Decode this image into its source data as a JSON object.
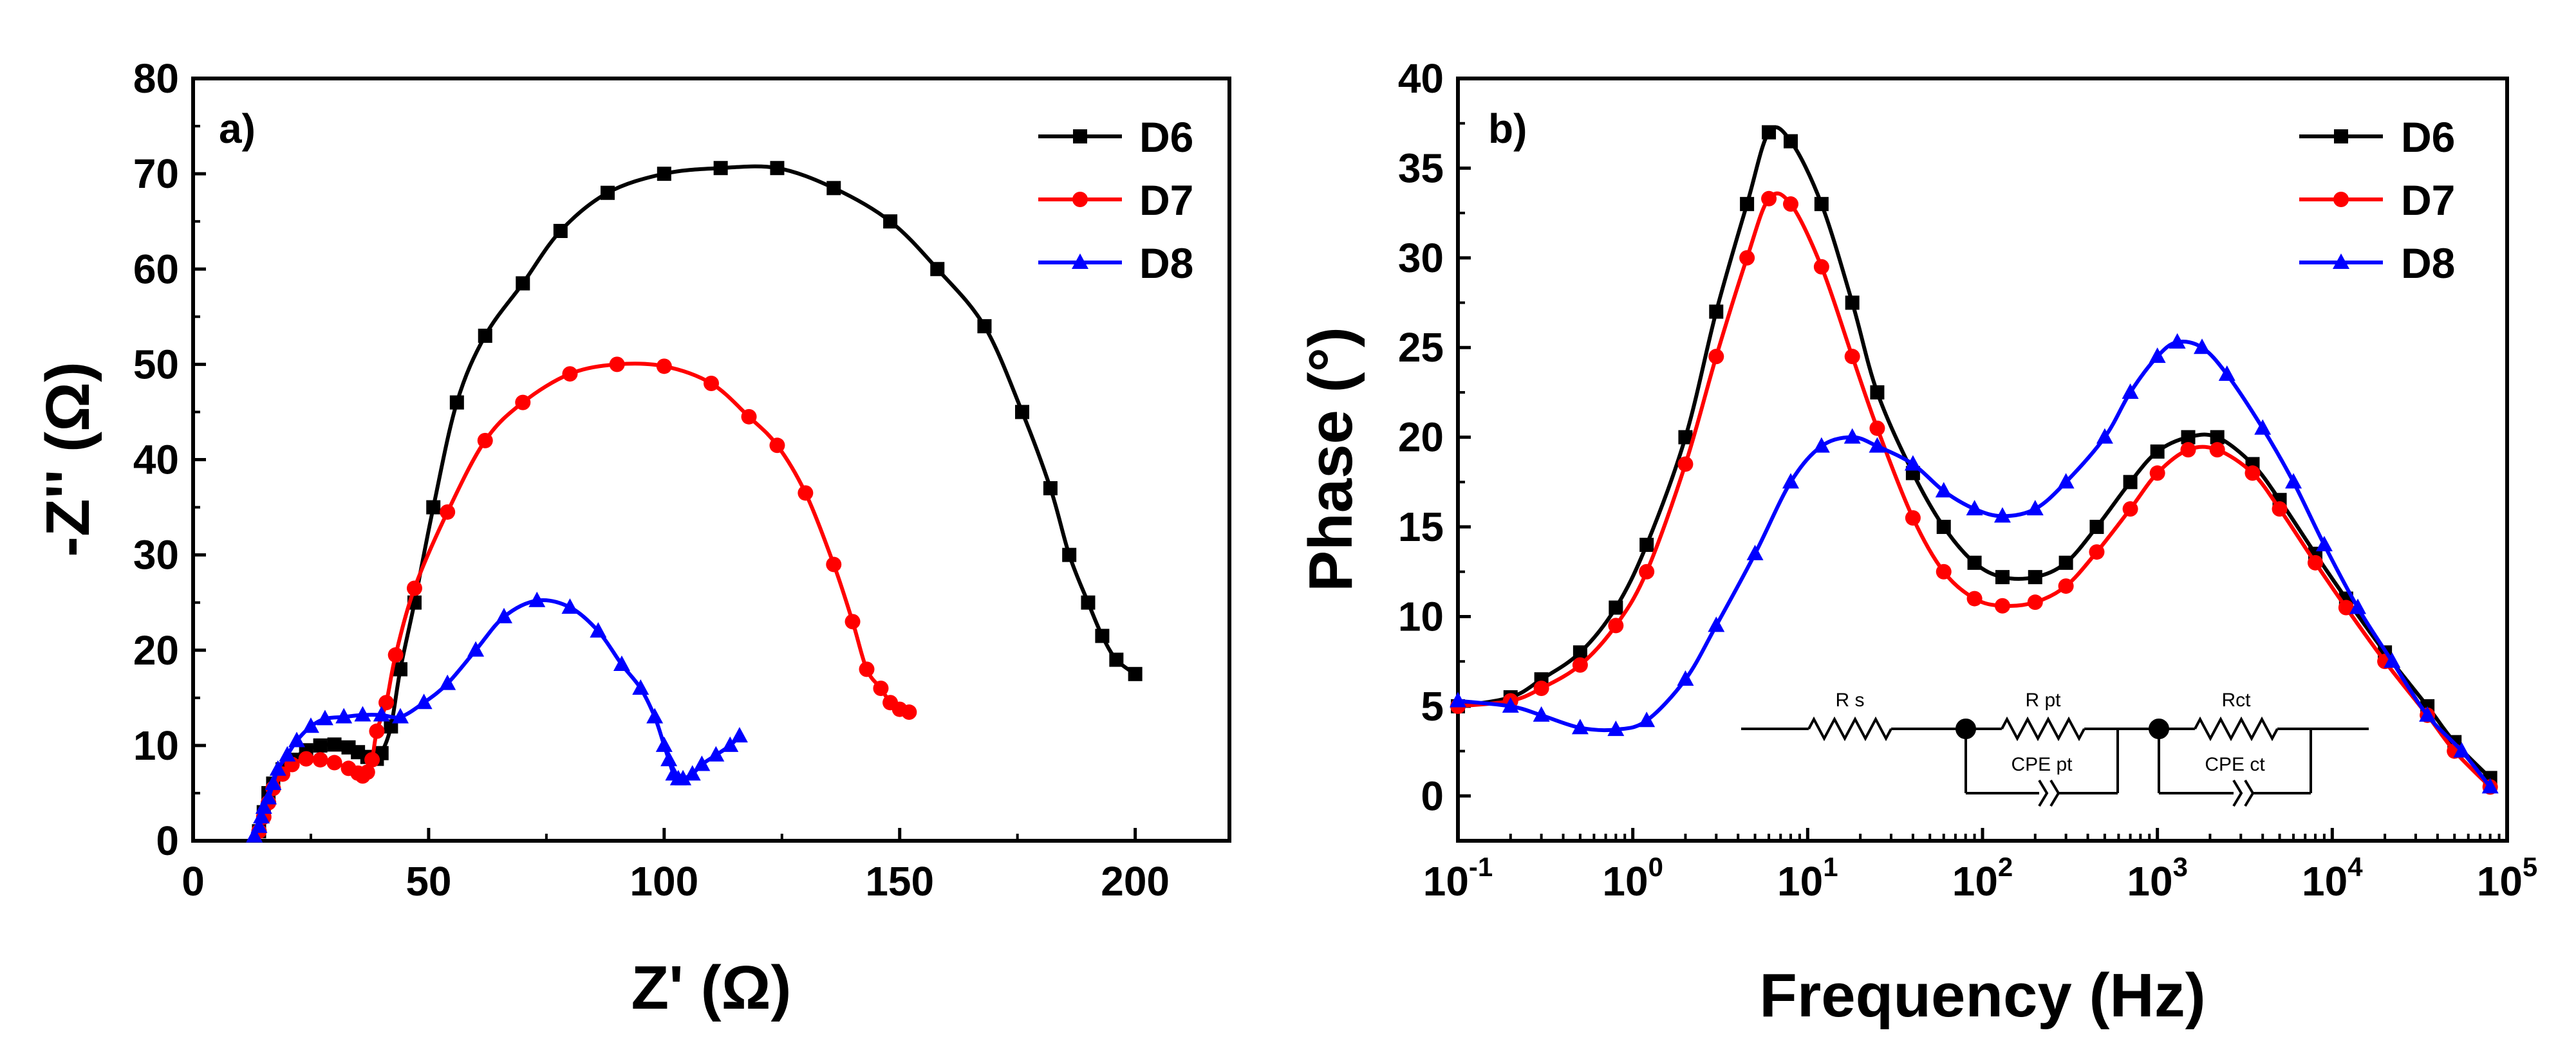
{
  "chart_data": [
    {
      "type": "scatter",
      "panel_label": "a)",
      "xlabel": "Z' (Ω)",
      "ylabel": "-Z'' (Ω)",
      "xlim": [
        0,
        220
      ],
      "ylim": [
        0,
        80
      ],
      "xticks": [
        0,
        50,
        100,
        150,
        200
      ],
      "yticks": [
        0,
        10,
        20,
        30,
        40,
        50,
        60,
        70,
        80
      ],
      "legend": "top-right",
      "series": [
        {
          "name": "D6",
          "color": "#000000",
          "marker": "square",
          "x": [
            14,
            15,
            16,
            17,
            19,
            21,
            24,
            27,
            30,
            33,
            35,
            37,
            39,
            40,
            42,
            44,
            47,
            51,
            56,
            62,
            70,
            78,
            88,
            100,
            112,
            124,
            136,
            148,
            158,
            168,
            176,
            182,
            186,
            190,
            193,
            196,
            200
          ],
          "y": [
            1,
            3,
            5,
            6,
            7.5,
            8.5,
            9.5,
            10,
            10.1,
            9.8,
            9.3,
            8.8,
            8.6,
            9.2,
            12,
            18,
            25,
            35,
            46,
            53,
            58.5,
            64,
            68,
            70,
            70.6,
            70.6,
            68.5,
            65,
            60,
            54,
            45,
            37,
            30,
            25,
            21.5,
            19,
            17.5
          ]
        },
        {
          "name": "D7",
          "color": "#ff0000",
          "marker": "circle",
          "x": [
            14,
            15,
            16,
            17,
            19,
            21,
            24,
            27,
            30,
            33,
            35,
            36,
            37,
            38,
            39,
            41,
            43,
            47,
            54,
            62,
            70,
            80,
            90,
            100,
            110,
            118,
            124,
            130,
            136,
            140,
            143,
            146,
            148,
            150,
            152
          ],
          "y": [
            1,
            2.5,
            4,
            5.5,
            7,
            8,
            8.6,
            8.5,
            8.2,
            7.6,
            7.1,
            6.8,
            7.2,
            8.5,
            11.5,
            14.5,
            19.5,
            26.5,
            34.5,
            42,
            46,
            49,
            50,
            49.8,
            48,
            44.5,
            41.5,
            36.5,
            29,
            23,
            18,
            16,
            14.5,
            13.8,
            13.5
          ]
        },
        {
          "name": "D8",
          "color": "#0000ff",
          "marker": "triangle",
          "x": [
            13,
            14,
            14.5,
            15,
            16,
            17,
            18,
            20,
            22,
            25,
            28,
            32,
            36,
            40,
            44,
            49,
            54,
            60,
            66,
            73,
            80,
            86,
            91,
            95,
            98,
            100,
            101,
            102,
            103,
            104,
            106,
            108,
            111,
            114,
            116
          ],
          "y": [
            0.5,
            1.5,
            2.5,
            3.5,
            4.5,
            6,
            7.5,
            9,
            10.5,
            12,
            12.8,
            13,
            13.2,
            13.2,
            13,
            14.5,
            16.5,
            20,
            23.5,
            25.2,
            24.5,
            22,
            18.5,
            16,
            13,
            10,
            8.5,
            7,
            6.5,
            6.5,
            7,
            8,
            9,
            10,
            11
          ]
        }
      ]
    },
    {
      "type": "line",
      "panel_label": "b)",
      "xlabel": "Frequency (Hz)",
      "ylabel": "Phase (°)",
      "xscale": "log",
      "xlim": [
        0.1,
        100000
      ],
      "ylim": [
        -2.5,
        40
      ],
      "xticks": [
        {
          "base": "10",
          "exp": "-1"
        },
        {
          "base": "10",
          "exp": "0"
        },
        {
          "base": "10",
          "exp": "1"
        },
        {
          "base": "10",
          "exp": "2"
        },
        {
          "base": "10",
          "exp": "3"
        },
        {
          "base": "10",
          "exp": "4"
        },
        {
          "base": "10",
          "exp": "5"
        }
      ],
      "yticks": [
        0,
        5,
        10,
        15,
        20,
        25,
        30,
        35,
        40
      ],
      "legend": "top-right",
      "series": [
        {
          "name": "D6",
          "color": "#000000",
          "marker": "square",
          "x": [
            0.1,
            0.2,
            0.3,
            0.5,
            0.8,
            1.2,
            2,
            3,
            4.5,
            6,
            8,
            12,
            18,
            25,
            40,
            60,
            90,
            130,
            200,
            300,
            450,
            700,
            1000,
            1500,
            2200,
            3500,
            5000,
            8000,
            12000,
            20000,
            35000,
            50000,
            80000
          ],
          "y": [
            5,
            5.5,
            6.5,
            8,
            10.5,
            14,
            20,
            27,
            33,
            37,
            36.5,
            33,
            27.5,
            22.5,
            18,
            15,
            13,
            12.2,
            12.2,
            13,
            15,
            17.5,
            19.2,
            20,
            20,
            18.5,
            16.5,
            13.5,
            11,
            8,
            5,
            3,
            1
          ]
        },
        {
          "name": "D7",
          "color": "#ff0000",
          "marker": "circle",
          "x": [
            0.1,
            0.2,
            0.3,
            0.5,
            0.8,
            1.2,
            2,
            3,
            4.5,
            6,
            8,
            12,
            18,
            25,
            40,
            60,
            90,
            130,
            200,
            300,
            450,
            700,
            1000,
            1500,
            2200,
            3500,
            5000,
            8000,
            12000,
            20000,
            35000,
            50000,
            80000
          ],
          "y": [
            5,
            5.3,
            6,
            7.3,
            9.5,
            12.5,
            18.5,
            24.5,
            30,
            33.3,
            33,
            29.5,
            24.5,
            20.5,
            15.5,
            12.5,
            11,
            10.6,
            10.8,
            11.7,
            13.6,
            16,
            18,
            19.3,
            19.3,
            18,
            16,
            13,
            10.5,
            7.5,
            4.5,
            2.5,
            0.5
          ]
        },
        {
          "name": "D8",
          "color": "#0000ff",
          "marker": "triangle",
          "x": [
            0.1,
            0.2,
            0.3,
            0.5,
            0.8,
            1.2,
            2,
            3,
            5,
            8,
            12,
            18,
            25,
            40,
            60,
            90,
            130,
            200,
            300,
            500,
            700,
            1000,
            1300,
            1800,
            2500,
            4000,
            6000,
            9000,
            14000,
            22000,
            35000,
            55000,
            80000
          ],
          "y": [
            5.3,
            5,
            4.5,
            3.8,
            3.7,
            4.2,
            6.5,
            9.5,
            13.5,
            17.5,
            19.5,
            20,
            19.5,
            18.5,
            17,
            16,
            15.6,
            16,
            17.5,
            20,
            22.5,
            24.5,
            25.3,
            25,
            23.5,
            20.5,
            17.5,
            14,
            10.5,
            7.5,
            4.5,
            2.5,
            0.5
          ]
        }
      ]
    }
  ],
  "circuit": {
    "rs_label": "R s",
    "rpt_label": "R pt",
    "cpept_label": "CPE pt",
    "rct_label": "Rct",
    "cpect_label": "CPE ct"
  }
}
